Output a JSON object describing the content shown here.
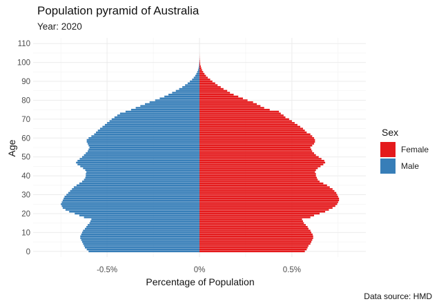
{
  "chart_data": {
    "type": "bar",
    "orientation": "horizontal-pyramid",
    "title": "Population pyramid of Australia",
    "subtitle": "Year: 2020",
    "caption": "Data source: HMD",
    "xlabel": "Percentage of Population",
    "ylabel": "Age",
    "xlim": [
      -0.9,
      0.9
    ],
    "ylim": [
      -3,
      113
    ],
    "x_ticks": [
      -0.5,
      0,
      0.5
    ],
    "x_tick_labels": [
      "-0.5%",
      "0%",
      "0.5%"
    ],
    "y_ticks": [
      0,
      10,
      20,
      30,
      40,
      50,
      60,
      70,
      80,
      90,
      100,
      110
    ],
    "y_tick_labels": [
      "0",
      "10",
      "20",
      "30",
      "40",
      "50",
      "60",
      "70",
      "80",
      "90",
      "100",
      "110"
    ],
    "grid": true,
    "legend": {
      "title": "Sex",
      "position": "right",
      "entries": [
        {
          "name": "Female",
          "color": "#E41A1C"
        },
        {
          "name": "Male",
          "color": "#377EB8"
        }
      ]
    },
    "ages": [
      0,
      1,
      2,
      3,
      4,
      5,
      6,
      7,
      8,
      9,
      10,
      11,
      12,
      13,
      14,
      15,
      16,
      17,
      18,
      19,
      20,
      21,
      22,
      23,
      24,
      25,
      26,
      27,
      28,
      29,
      30,
      31,
      32,
      33,
      34,
      35,
      36,
      37,
      38,
      39,
      40,
      41,
      42,
      43,
      44,
      45,
      46,
      47,
      48,
      49,
      50,
      51,
      52,
      53,
      54,
      55,
      56,
      57,
      58,
      59,
      60,
      61,
      62,
      63,
      64,
      65,
      66,
      67,
      68,
      69,
      70,
      71,
      72,
      73,
      74,
      75,
      76,
      77,
      78,
      79,
      80,
      81,
      82,
      83,
      84,
      85,
      86,
      87,
      88,
      89,
      90,
      91,
      92,
      93,
      94,
      95,
      96,
      97,
      98,
      99,
      100,
      101,
      102,
      103,
      104,
      105,
      106,
      107,
      108,
      109,
      110
    ],
    "series": [
      {
        "name": "Female",
        "color": "#E41A1C",
        "values": [
          0.57,
          0.58,
          0.585,
          0.59,
          0.6,
          0.605,
          0.61,
          0.615,
          0.615,
          0.612,
          0.605,
          0.6,
          0.59,
          0.585,
          0.575,
          0.565,
          0.56,
          0.555,
          0.6,
          0.62,
          0.65,
          0.68,
          0.7,
          0.72,
          0.735,
          0.745,
          0.75,
          0.755,
          0.755,
          0.75,
          0.745,
          0.74,
          0.73,
          0.72,
          0.705,
          0.69,
          0.67,
          0.65,
          0.64,
          0.635,
          0.63,
          0.63,
          0.625,
          0.63,
          0.64,
          0.655,
          0.67,
          0.68,
          0.675,
          0.66,
          0.645,
          0.63,
          0.62,
          0.61,
          0.605,
          0.6,
          0.61,
          0.62,
          0.625,
          0.625,
          0.62,
          0.61,
          0.6,
          0.58,
          0.57,
          0.56,
          0.545,
          0.53,
          0.515,
          0.5,
          0.485,
          0.465,
          0.455,
          0.44,
          0.43,
          0.38,
          0.35,
          0.33,
          0.31,
          0.29,
          0.26,
          0.235,
          0.21,
          0.185,
          0.165,
          0.15,
          0.13,
          0.115,
          0.098,
          0.085,
          0.07,
          0.058,
          0.045,
          0.035,
          0.027,
          0.02,
          0.014,
          0.01,
          0.007,
          0.004,
          0.003,
          0.002,
          0.001,
          0.0006,
          0.0003,
          0.0001,
          0,
          0,
          0,
          0,
          0
        ]
      },
      {
        "name": "Male",
        "color": "#377EB8",
        "values": [
          -0.6,
          -0.61,
          -0.62,
          -0.625,
          -0.63,
          -0.635,
          -0.64,
          -0.645,
          -0.645,
          -0.64,
          -0.635,
          -0.63,
          -0.62,
          -0.612,
          -0.605,
          -0.595,
          -0.59,
          -0.585,
          -0.625,
          -0.65,
          -0.675,
          -0.705,
          -0.725,
          -0.74,
          -0.745,
          -0.75,
          -0.745,
          -0.74,
          -0.735,
          -0.73,
          -0.72,
          -0.71,
          -0.7,
          -0.69,
          -0.68,
          -0.665,
          -0.65,
          -0.635,
          -0.625,
          -0.618,
          -0.615,
          -0.615,
          -0.612,
          -0.618,
          -0.63,
          -0.645,
          -0.66,
          -0.668,
          -0.66,
          -0.648,
          -0.635,
          -0.625,
          -0.615,
          -0.605,
          -0.6,
          -0.595,
          -0.6,
          -0.605,
          -0.61,
          -0.61,
          -0.6,
          -0.585,
          -0.57,
          -0.56,
          -0.55,
          -0.538,
          -0.525,
          -0.512,
          -0.5,
          -0.487,
          -0.475,
          -0.46,
          -0.445,
          -0.43,
          -0.4,
          -0.37,
          -0.345,
          -0.32,
          -0.295,
          -0.27,
          -0.24,
          -0.215,
          -0.19,
          -0.168,
          -0.148,
          -0.128,
          -0.11,
          -0.093,
          -0.078,
          -0.064,
          -0.052,
          -0.04,
          -0.031,
          -0.023,
          -0.017,
          -0.012,
          -0.008,
          -0.005,
          -0.003,
          -0.002,
          -0.001,
          -0.0006,
          -0.0003,
          -0.0001,
          0,
          0,
          0,
          0,
          0,
          0,
          0
        ]
      }
    ]
  }
}
